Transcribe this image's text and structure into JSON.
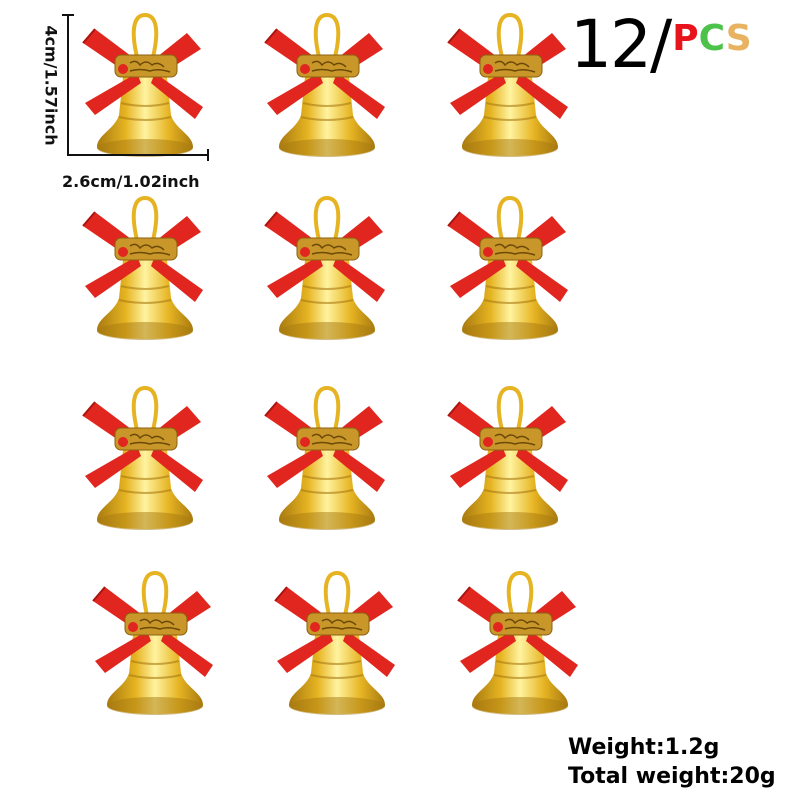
{
  "dimensions": {
    "height_label": "4cm/1.57inch",
    "width_label": "2.6cm/1.02inch"
  },
  "quantity": {
    "number": "12",
    "slash": "/",
    "unit_letters": [
      {
        "char": "P",
        "color": "#e8141b"
      },
      {
        "char": "C",
        "color": "#4cc24a"
      },
      {
        "char": "S",
        "color": "#e8b260"
      }
    ]
  },
  "specs": {
    "weight": "Weight:1.2g",
    "total_weight": "Total weight:20g"
  },
  "product": {
    "count": 12,
    "colors": {
      "bell_gold": "#e6b422",
      "bell_highlight": "#fff3a0",
      "bell_shadow": "#a87a10",
      "ribbon_red": "#e0261e",
      "ribbon_dark": "#a9140f"
    }
  }
}
